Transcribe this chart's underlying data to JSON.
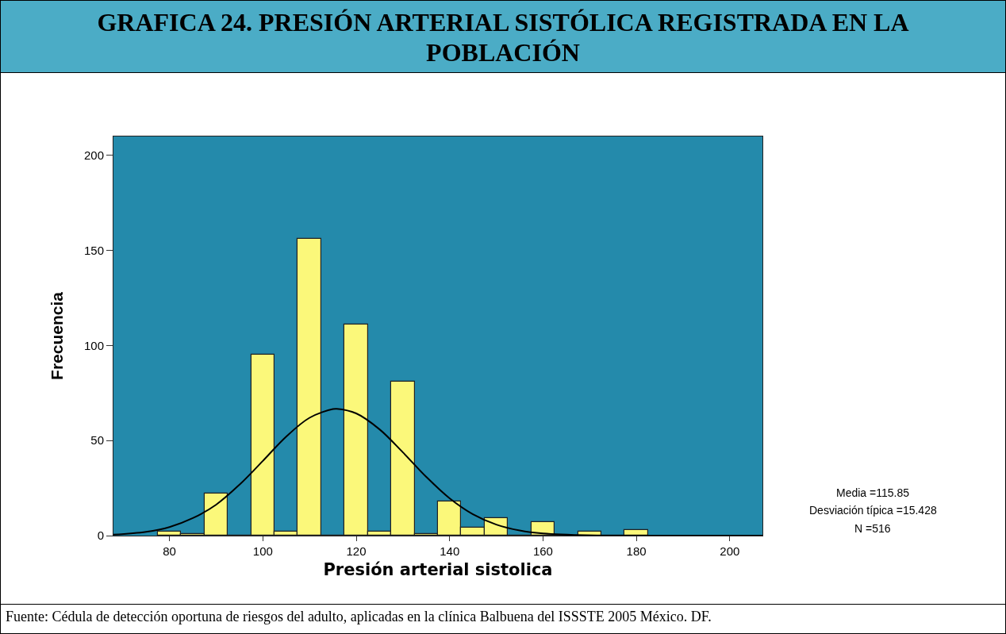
{
  "chart_data": {
    "type": "histogram",
    "title": "GRAFICA 24. PRESIÓN ARTERIAL SISTÓLICA REGISTRADA EN LA POBLACIÓN",
    "xlabel": "Presión arterial sistolica",
    "ylabel": "Frecuencia",
    "bins": [
      77.5,
      82.5,
      87.5,
      92.5,
      97.5,
      102.5,
      107.5,
      112.5,
      117.5,
      122.5,
      127.5,
      132.5,
      137.5,
      142.5,
      147.5,
      152.5,
      157.5,
      162.5,
      167.5,
      172.5,
      177.5,
      182.5
    ],
    "values": [
      2,
      1,
      22,
      0,
      95,
      2,
      156,
      0,
      111,
      2,
      81,
      1,
      18,
      4,
      9,
      0,
      7,
      0,
      2,
      0,
      3
    ],
    "color": "#fbf87a",
    "series": [
      {
        "type": "line",
        "color": "#000000",
        "x": [
          68,
          75,
          80,
          85,
          90,
          95,
          100,
          105,
          110,
          115,
          115.85,
          120,
          125,
          130,
          135,
          140,
          145,
          150,
          155,
          160,
          170,
          180,
          207
        ],
        "values": [
          0.5,
          2,
          4.5,
          9.2,
          16.3,
          26.8,
          39.3,
          52.1,
          62,
          66.6,
          66.7,
          64.3,
          55.9,
          43.8,
          30.9,
          19.6,
          11.2,
          5.8,
          2.7,
          1.1,
          0.1,
          0,
          0
        ]
      }
    ],
    "xlim": [
      68,
      207
    ],
    "xticks": [
      80,
      100,
      120,
      140,
      160,
      180,
      200
    ],
    "ylim": [
      0,
      210
    ],
    "yticks": [
      0,
      50,
      100,
      150,
      200
    ],
    "annotations": [
      "Media =115.85",
      "Desviación típica =15.428",
      "N =516",
      "Fuente: Cédula de detección oportuna de riesgos del adulto, aplicadas en la clínica Balbuena del ISSSTE 2005 México. DF."
    ]
  }
}
